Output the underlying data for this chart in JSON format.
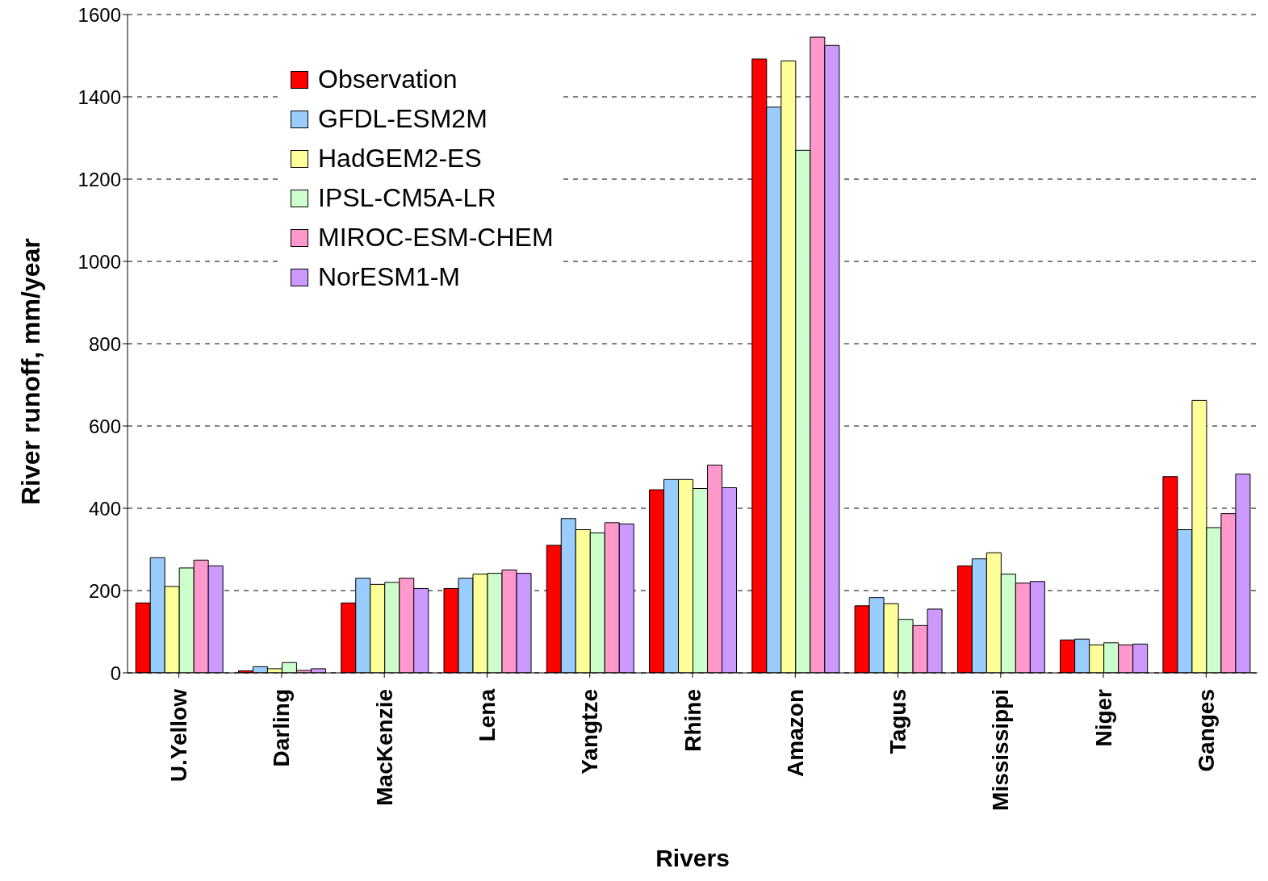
{
  "chart_data": {
    "type": "bar",
    "xlabel": "Rivers",
    "ylabel": "River runoff, mm/year",
    "categories": [
      "U.Yellow",
      "Darling",
      "MacKenzie",
      "Lena",
      "Yangtze",
      "Rhine",
      "Amazon",
      "Tagus",
      "Mississippi",
      "Niger",
      "Ganges"
    ],
    "series": [
      {
        "name": "Observation",
        "color": "#ff0000",
        "values": [
          170,
          5,
          170,
          205,
          310,
          445,
          1492,
          163,
          260,
          80,
          477
        ]
      },
      {
        "name": "GFDL-ESM2M",
        "color": "#99ccff",
        "values": [
          280,
          15,
          230,
          230,
          375,
          470,
          1375,
          183,
          277,
          82,
          348
        ]
      },
      {
        "name": "HadGEM2-ES",
        "color": "#ffff99",
        "values": [
          210,
          10,
          215,
          240,
          348,
          470,
          1487,
          168,
          292,
          68,
          662
        ]
      },
      {
        "name": "IPSL-CM5A-LR",
        "color": "#ccffcc",
        "values": [
          255,
          25,
          220,
          242,
          340,
          448,
          1270,
          130,
          240,
          73,
          353
        ]
      },
      {
        "name": "MIROC-ESM-CHEM",
        "color": "#ff99cc",
        "values": [
          274,
          6,
          230,
          250,
          365,
          505,
          1545,
          115,
          218,
          68,
          387
        ]
      },
      {
        "name": "NorESM1-M",
        "color": "#cc99ff",
        "values": [
          260,
          10,
          205,
          242,
          362,
          450,
          1525,
          155,
          222,
          70,
          483
        ]
      }
    ],
    "ylim": [
      0,
      1600
    ],
    "yticks": [
      0,
      200,
      400,
      600,
      800,
      1000,
      1200,
      1400,
      1600
    ],
    "grid": "y",
    "legend": "top left"
  }
}
